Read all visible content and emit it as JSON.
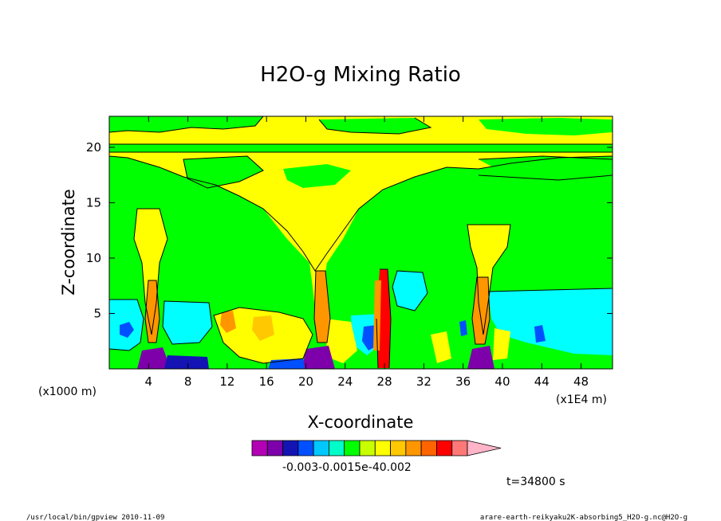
{
  "chart_data": {
    "type": "heatmap",
    "title": "H2O-g Mixing Ratio",
    "xlabel": "X-coordinate",
    "ylabel": "Z-coordinate",
    "x_unit": "(x1000 m)",
    "x_exponent_note": "(x1E4 m)",
    "xlim": [
      0,
      51.2
    ],
    "ylim": [
      0,
      22.8
    ],
    "x_ticks": [
      "4",
      "8",
      "12",
      "16",
      "20",
      "24",
      "28",
      "32",
      "36",
      "40",
      "44",
      "48"
    ],
    "y_ticks": [
      "5",
      "10",
      "15",
      "20"
    ],
    "x_tick_values": [
      4,
      8,
      12,
      16,
      20,
      24,
      28,
      32,
      36,
      40,
      44,
      48
    ],
    "y_tick_values": [
      5,
      10,
      15,
      20
    ],
    "colorbar": {
      "colors": [
        "#b400b4",
        "#7d00aa",
        "#1414b4",
        "#0050ff",
        "#00c8ff",
        "#00ffc8",
        "#00ff00",
        "#c8ff00",
        "#ffff00",
        "#ffc800",
        "#ff9600",
        "#ff6400",
        "#ff0000",
        "#ff7878",
        "#ffb4c8"
      ],
      "labels_text": "-0.003-0.0015e-40.002"
    },
    "time_label": "t=34800 s",
    "background_color": "#00ff00"
  },
  "footer": {
    "left": "/usr/local/bin/gpview  2010-11-09",
    "right": "arare-earth-reikyaku2K-absorbing5_H2O-g.nc@H2O-g"
  }
}
